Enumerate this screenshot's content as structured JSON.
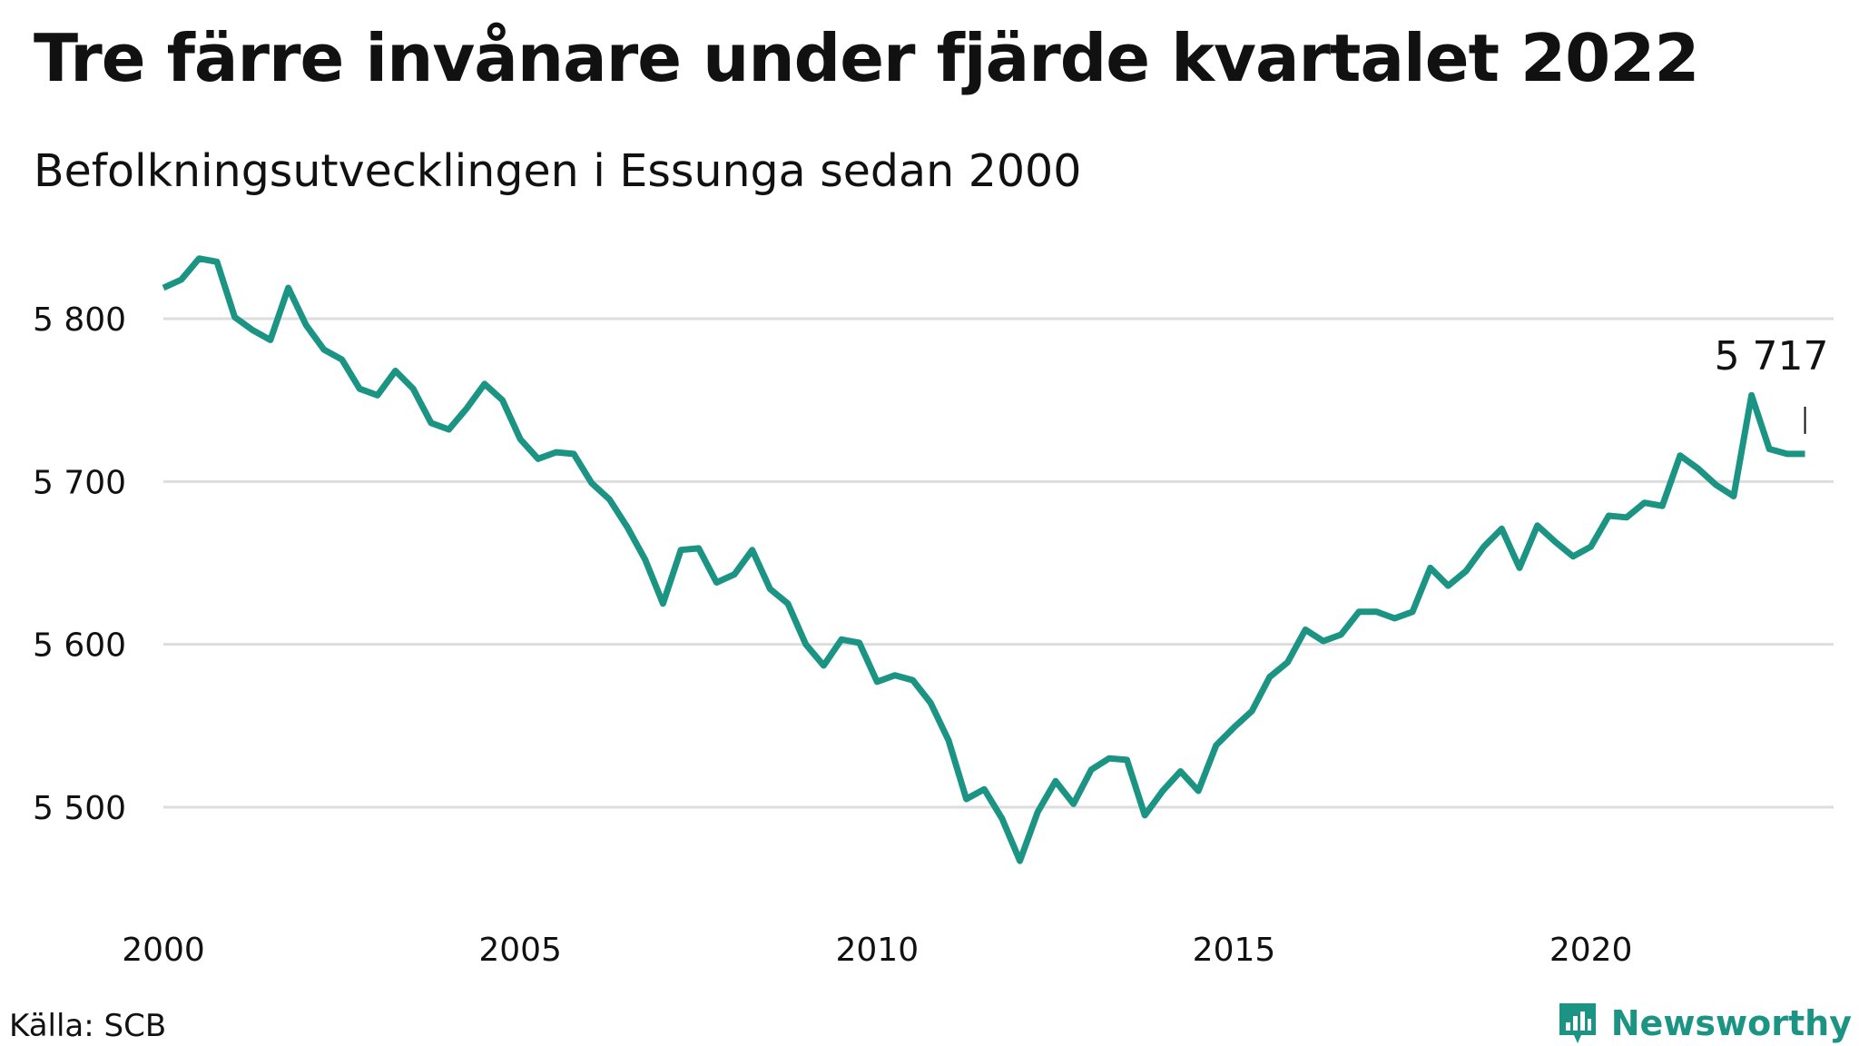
{
  "header": {
    "title": "Tre färre invånare under fjärde kvartalet 2022",
    "subtitle": "Befolkningsutvecklingen i Essunga sedan 2000"
  },
  "footer": {
    "source": "Källa: SCB",
    "brand_name": "Newsworthy",
    "brand_icon": "bar-chart-badge-icon"
  },
  "colors": {
    "line": "#1b9484",
    "grid": "#dddddd",
    "text": "#111111",
    "brand": "#1b9484"
  },
  "chart_data": {
    "type": "line",
    "title": "Tre färre invånare under fjärde kvartalet 2022",
    "subtitle": "Befolkningsutvecklingen i Essunga sedan 2000",
    "xlabel": "",
    "ylabel": "",
    "xlim": [
      2000,
      2023.4
    ],
    "ylim": [
      5452,
      5848
    ],
    "grid": "horizontal",
    "legend": "none",
    "x_ticks": [
      {
        "value": 2000,
        "label": "2000"
      },
      {
        "value": 2005,
        "label": "2005"
      },
      {
        "value": 2010,
        "label": "2010"
      },
      {
        "value": 2015,
        "label": "2015"
      },
      {
        "value": 2020,
        "label": "2020"
      }
    ],
    "y_ticks": [
      {
        "value": 5500,
        "label": "5 500"
      },
      {
        "value": 5600,
        "label": "5 600"
      },
      {
        "value": 5700,
        "label": "5 700"
      },
      {
        "value": 5800,
        "label": "5 800"
      }
    ],
    "annotation": {
      "x": 2023.0,
      "y": 5717,
      "label": "5 717"
    },
    "series": [
      {
        "x": [
          2000.0,
          2000.25,
          2000.5,
          2000.75,
          2001.0,
          2001.25,
          2001.5,
          2001.75,
          2002.0,
          2002.25,
          2002.5,
          2002.75,
          2003.0,
          2003.25,
          2003.5,
          2003.75,
          2004.0,
          2004.25,
          2004.5,
          2004.75,
          2005.0,
          2005.25,
          2005.5,
          2005.75,
          2006.0,
          2006.25,
          2006.5,
          2006.75,
          2007.0,
          2007.25,
          2007.5,
          2007.75,
          2008.0,
          2008.25,
          2008.5,
          2008.75,
          2009.0,
          2009.25,
          2009.5,
          2009.75,
          2010.0,
          2010.25,
          2010.5,
          2010.75,
          2011.0,
          2011.25,
          2011.5,
          2011.75,
          2012.0,
          2012.25,
          2012.5,
          2012.75,
          2013.0,
          2013.25,
          2013.5,
          2013.75,
          2014.0,
          2014.25,
          2014.5,
          2014.75,
          2015.0,
          2015.25,
          2015.5,
          2015.75,
          2016.0,
          2016.25,
          2016.5,
          2016.75,
          2017.0,
          2017.25,
          2017.5,
          2017.75,
          2018.0,
          2018.25,
          2018.5,
          2018.75,
          2019.0,
          2019.25,
          2019.5,
          2019.75,
          2020.0,
          2020.25,
          2020.5,
          2020.75,
          2021.0,
          2021.25,
          2021.5,
          2021.75,
          2022.0,
          2022.25,
          2022.5,
          2022.75,
          2023.0
        ],
        "values": [
          5819,
          5824,
          5837,
          5835,
          5801,
          5793,
          5787,
          5819,
          5796,
          5781,
          5775,
          5757,
          5753,
          5768,
          5757,
          5736,
          5732,
          5745,
          5760,
          5750,
          5726,
          5714,
          5718,
          5717,
          5699,
          5689,
          5672,
          5652,
          5625,
          5658,
          5659,
          5638,
          5643,
          5658,
          5634,
          5625,
          5600,
          5587,
          5603,
          5601,
          5577,
          5581,
          5578,
          5564,
          5541,
          5505,
          5511,
          5493,
          5467,
          5497,
          5516,
          5502,
          5523,
          5530,
          5529,
          5495,
          5510,
          5522,
          5510,
          5538,
          5549,
          5559,
          5580,
          5589,
          5609,
          5602,
          5606,
          5620,
          5620,
          5616,
          5620,
          5647,
          5636,
          5645,
          5660,
          5671,
          5647,
          5673,
          5663,
          5654,
          5660,
          5679,
          5678,
          5687,
          5685,
          5716,
          5708,
          5698,
          5691,
          5753,
          5720,
          5717,
          5717
        ]
      }
    ]
  }
}
